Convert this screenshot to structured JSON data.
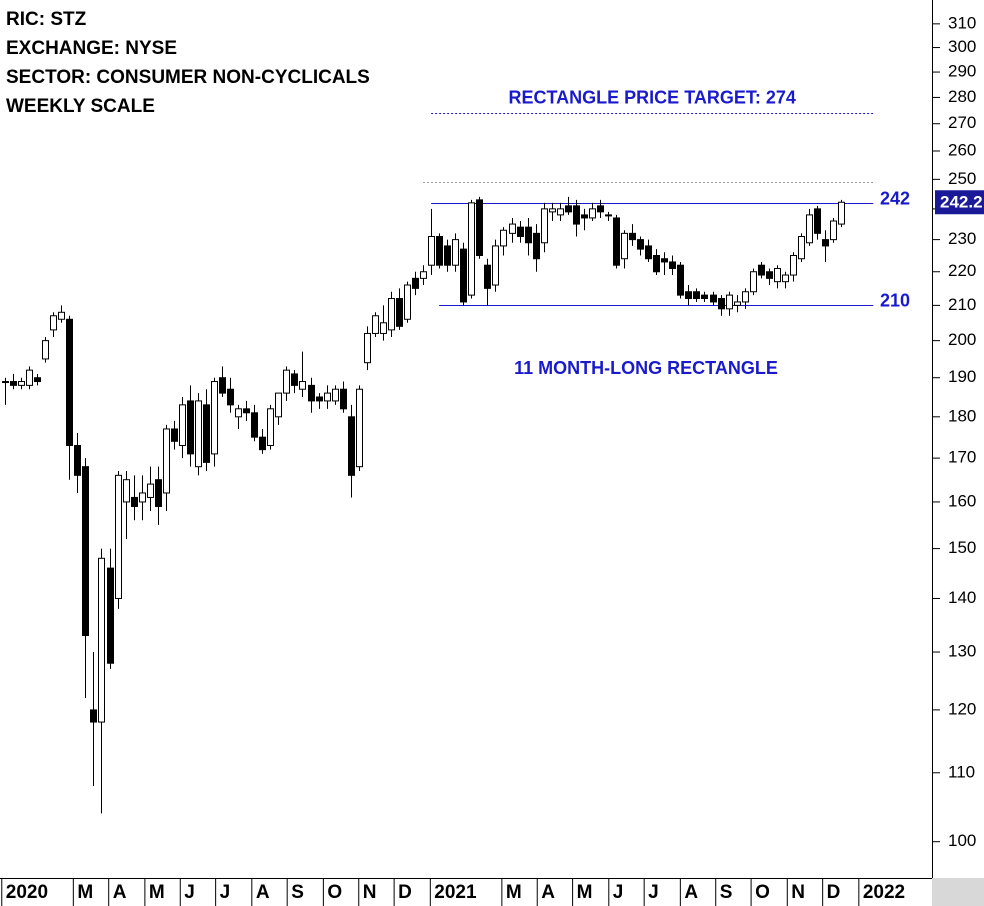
{
  "chart_data": {
    "type": "candlestick",
    "info": [
      "RIC: STZ",
      "EXCHANGE: NYSE",
      "SECTOR: CONSUMER NON-CYCLICALS",
      "WEEKLY SCALE"
    ],
    "log_scale": true,
    "up_color": "#ffffff",
    "down_color": "#000000",
    "annotation_color": "#1a1acc",
    "open": [
      189,
      189,
      188,
      188,
      190,
      195,
      203,
      206,
      206,
      173,
      168,
      120,
      118,
      146,
      140,
      160,
      161,
      160,
      161,
      165,
      162,
      177,
      173,
      184,
      168,
      183,
      171,
      190,
      187,
      180,
      182,
      181,
      175,
      173,
      180,
      186,
      191,
      187,
      188,
      185,
      184,
      184,
      187,
      180,
      168,
      194,
      202,
      202,
      203,
      212,
      206,
      218,
      218,
      222,
      231,
      228,
      222,
      227,
      213,
      243,
      222,
      216,
      228,
      232,
      234,
      234,
      232,
      229,
      239,
      238,
      241,
      241,
      238,
      237,
      241,
      238,
      237,
      224,
      232,
      230,
      228,
      225,
      224,
      223,
      222,
      214,
      214,
      213,
      213,
      212,
      209,
      210,
      211,
      214,
      222,
      220,
      217,
      217,
      219,
      224,
      229,
      240,
      230,
      230,
      235
    ],
    "high": [
      190,
      191,
      190,
      193,
      191,
      201,
      208,
      210,
      207,
      176,
      170,
      130,
      150,
      150,
      167,
      167,
      166,
      166,
      168,
      168,
      178,
      179,
      185,
      188,
      186,
      187,
      190,
      193,
      190,
      183,
      184,
      183,
      177,
      183,
      186,
      193,
      192,
      197,
      190,
      186,
      188,
      188,
      189,
      183,
      188,
      204,
      208,
      210,
      214,
      215,
      217,
      220,
      222,
      240,
      232,
      230,
      232,
      229,
      243,
      244,
      224,
      230,
      234,
      237,
      236,
      237,
      235,
      242,
      242,
      242,
      244,
      243,
      240,
      242,
      243,
      239,
      238,
      233,
      235,
      231,
      230,
      227,
      226,
      225,
      223,
      216,
      215,
      214,
      214,
      213,
      214,
      213,
      215,
      221,
      223,
      221,
      222,
      220,
      226,
      232,
      240,
      241,
      233,
      237,
      243
    ],
    "low": [
      183,
      187,
      187,
      187,
      188,
      194,
      201,
      205,
      165,
      162,
      122,
      108,
      104,
      127,
      138,
      152,
      156,
      156,
      158,
      155,
      158,
      172,
      170,
      168,
      166,
      167,
      168,
      185,
      181,
      177,
      179,
      174,
      171,
      172,
      178,
      184,
      186,
      185,
      181,
      182,
      182,
      183,
      181,
      161,
      167,
      192,
      201,
      200,
      201,
      203,
      205,
      213,
      216,
      219,
      221,
      220,
      220,
      210,
      212,
      224,
      210,
      214,
      225,
      229,
      229,
      225,
      220,
      226,
      236,
      236,
      238,
      231,
      233,
      236,
      237,
      236,
      221,
      221,
      228,
      225,
      223,
      219,
      219,
      219,
      212,
      210,
      211,
      211,
      210,
      207,
      207,
      208,
      209,
      213,
      218,
      216,
      215,
      215,
      217,
      223,
      228,
      230,
      223,
      229,
      234
    ],
    "close": [
      189,
      188,
      189,
      192,
      189,
      200,
      207,
      208,
      173,
      166,
      133,
      118,
      148,
      128,
      166,
      165,
      159,
      162,
      164,
      159,
      177,
      174,
      183,
      171,
      184,
      169,
      189,
      186,
      183,
      182,
      181,
      175,
      172,
      182,
      186,
      192,
      188,
      189,
      184,
      184,
      186,
      187,
      182,
      166,
      187,
      202,
      207,
      205,
      212,
      204,
      216,
      215,
      220,
      231,
      222,
      222,
      230,
      211,
      242,
      225,
      215,
      228,
      233,
      235,
      231,
      229,
      224,
      240,
      240,
      240,
      239,
      235,
      237,
      240,
      239,
      238,
      222,
      232,
      230,
      227,
      224,
      220,
      223,
      221,
      213,
      212,
      212,
      212,
      211,
      209,
      213,
      211,
      214,
      220,
      219,
      218,
      221,
      219,
      225,
      231,
      238,
      232,
      228,
      236,
      242.2
    ],
    "xlim": [
      -0.62,
      115.3
    ],
    "xticks": [
      {
        "value": -0.4,
        "label": "2020"
      },
      {
        "value": 8.5,
        "label": "M"
      },
      {
        "value": 12.9,
        "label": "A"
      },
      {
        "value": 17.4,
        "label": "M"
      },
      {
        "value": 21.8,
        "label": "J"
      },
      {
        "value": 26.2,
        "label": "J"
      },
      {
        "value": 30.7,
        "label": "A"
      },
      {
        "value": 35.1,
        "label": "S"
      },
      {
        "value": 39.6,
        "label": "O"
      },
      {
        "value": 44,
        "label": "N"
      },
      {
        "value": 48.4,
        "label": "D"
      },
      {
        "value": 52.9,
        "label": "2021"
      },
      {
        "value": 61.8,
        "label": "M"
      },
      {
        "value": 66.2,
        "label": "A"
      },
      {
        "value": 70.6,
        "label": "M"
      },
      {
        "value": 75.1,
        "label": "J"
      },
      {
        "value": 79.5,
        "label": "J"
      },
      {
        "value": 84,
        "label": "A"
      },
      {
        "value": 88.4,
        "label": "S"
      },
      {
        "value": 92.8,
        "label": "O"
      },
      {
        "value": 97.3,
        "label": "N"
      },
      {
        "value": 101.7,
        "label": "D"
      },
      {
        "value": 106.2,
        "label": "2022"
      }
    ],
    "ylim": [
      95.1,
      320.4
    ],
    "yticks": [
      100,
      110,
      120,
      130,
      140,
      150,
      160,
      170,
      180,
      190,
      200,
      210,
      220,
      230,
      240,
      250,
      260,
      270,
      280,
      290,
      300,
      310
    ],
    "levels": [
      {
        "value": 242,
        "from": 53,
        "to": 108,
        "style": "solid"
      },
      {
        "value": 210,
        "from": 54,
        "to": 108,
        "style": "solid"
      },
      {
        "value": 274,
        "from": 53,
        "to": 108,
        "style": "dotted",
        "label": "RECTANGLE PRICE TARGET: 274"
      },
      {
        "value": 249,
        "from": 52,
        "to": 108,
        "style": "faint"
      }
    ],
    "pattern_label": "11 MONTH-LONG RECTANGLE"
  }
}
